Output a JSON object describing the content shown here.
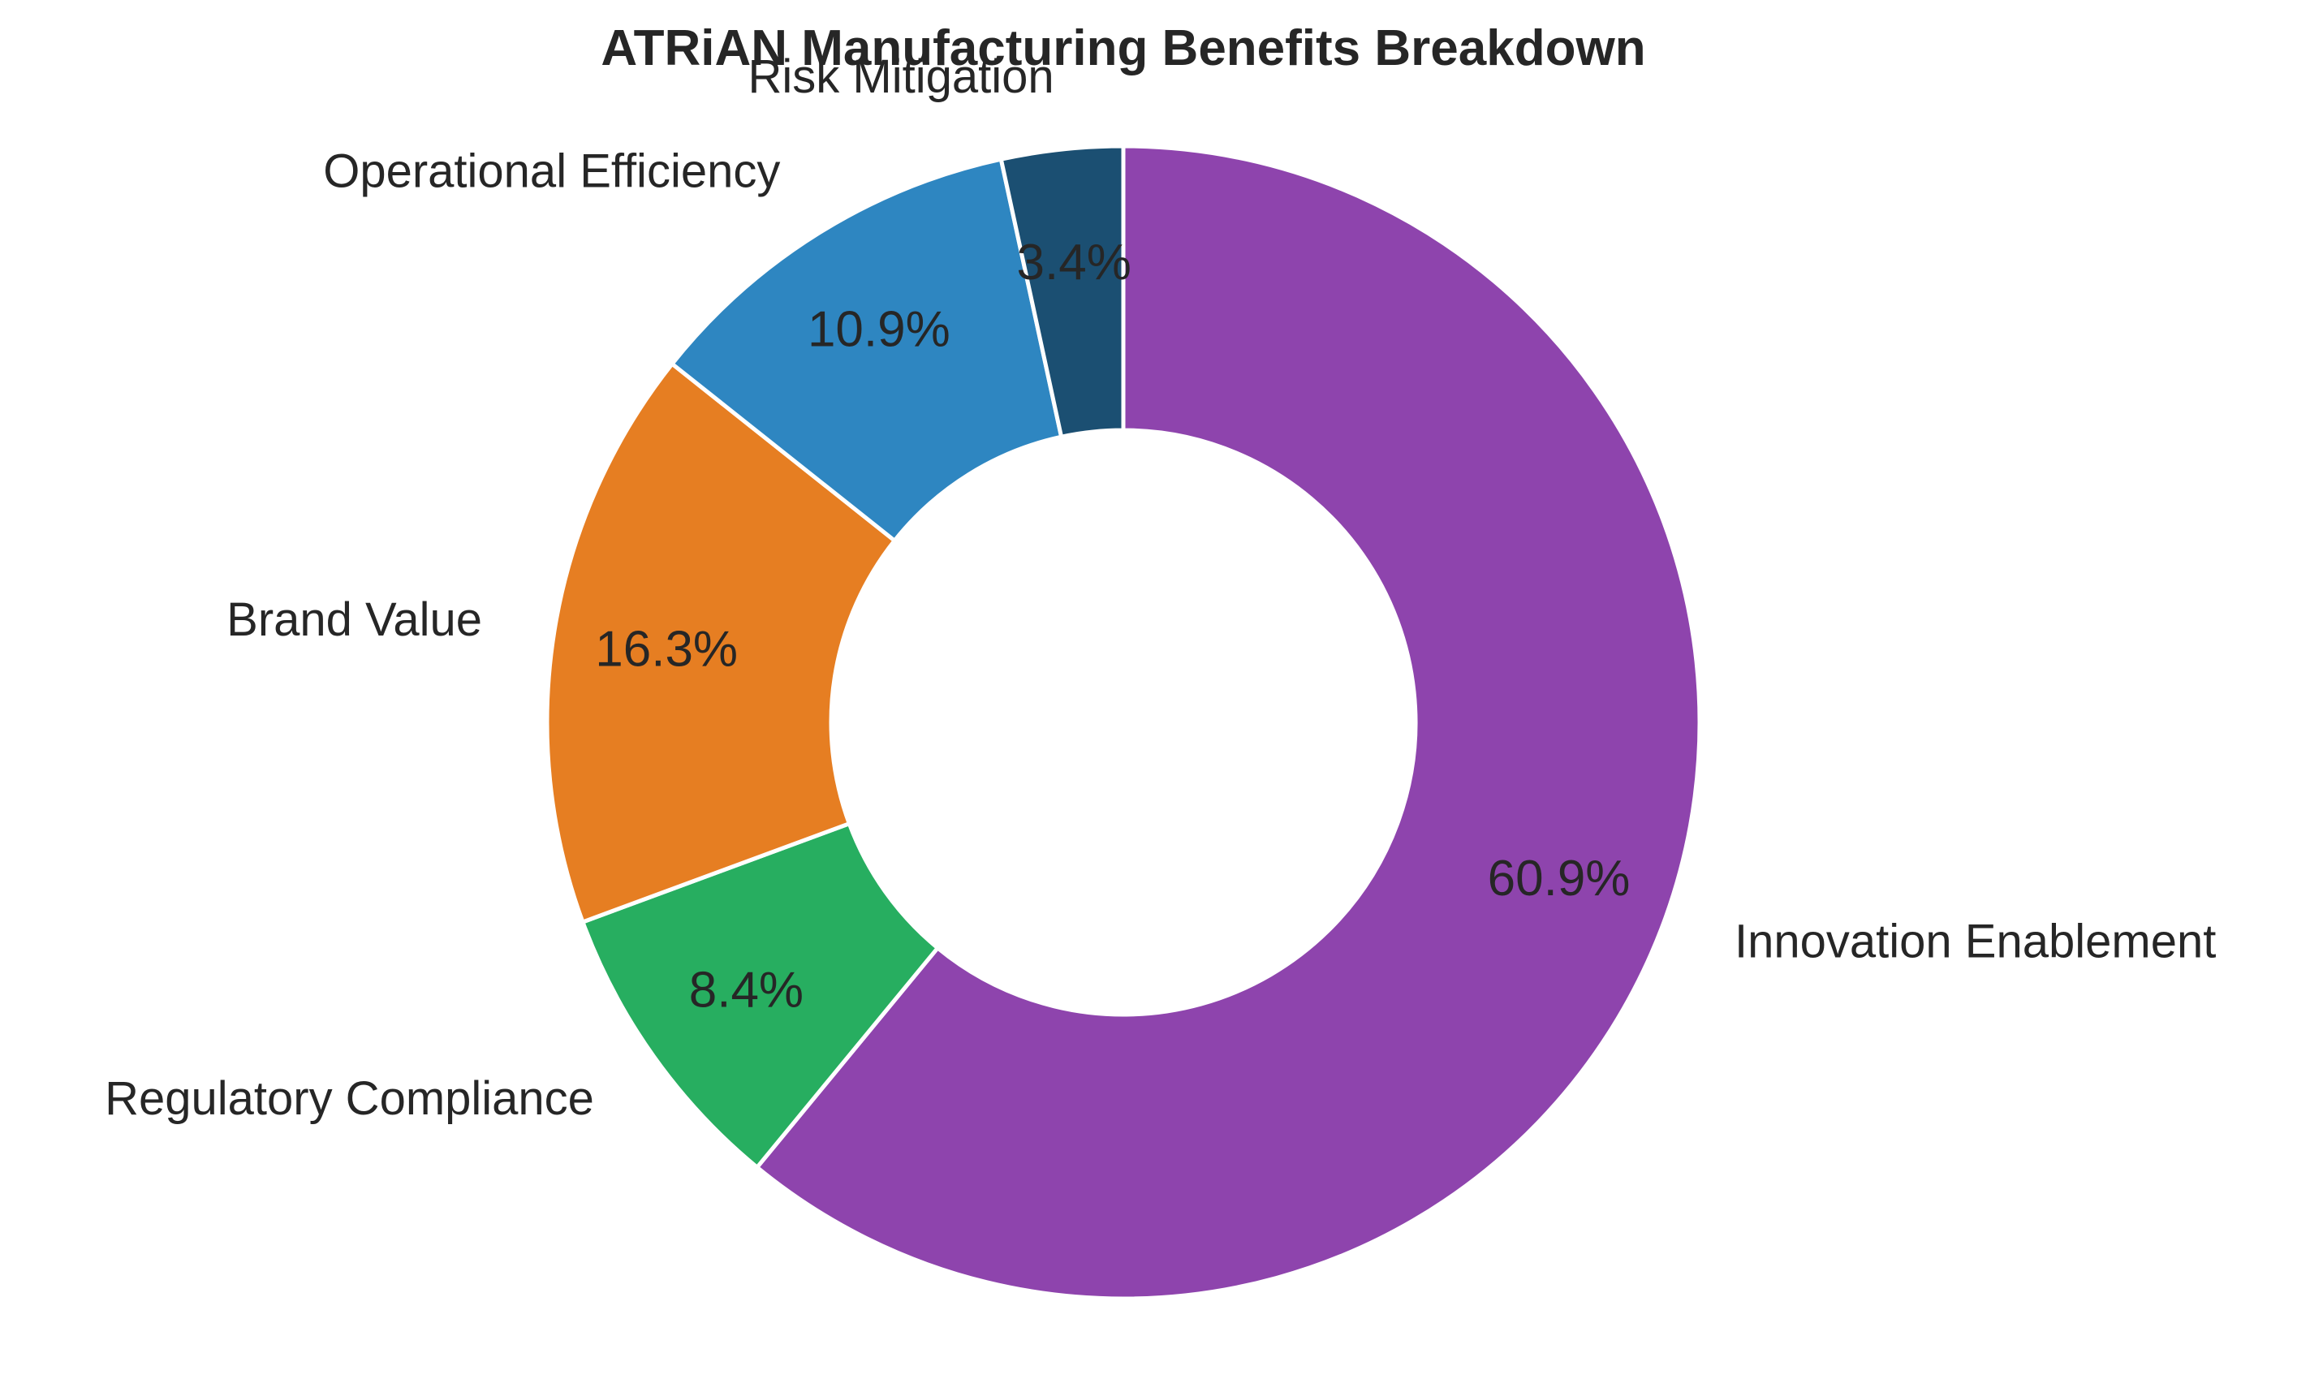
{
  "chart_data": {
    "type": "pie",
    "variant": "donut",
    "title": "ATRiAN Manufacturing Benefits Breakdown",
    "start_angle_deg": 90,
    "direction": "clockwise",
    "slices": [
      {
        "label": "Innovation Enablement",
        "value": 60.9,
        "pct_label": "60.9%",
        "color": "#8e44ad"
      },
      {
        "label": "Regulatory Compliance",
        "value": 8.4,
        "pct_label": "8.4%",
        "color": "#27ae60"
      },
      {
        "label": "Brand Value",
        "value": 16.3,
        "pct_label": "16.3%",
        "color": "#e67e22"
      },
      {
        "label": "Operational Efficiency",
        "value": 10.9,
        "pct_label": "10.9%",
        "color": "#2e86c1"
      },
      {
        "label": "Risk Mitigation",
        "value": 3.4,
        "pct_label": "3.4%",
        "color": "#1b4f72"
      }
    ],
    "legend": "none"
  }
}
